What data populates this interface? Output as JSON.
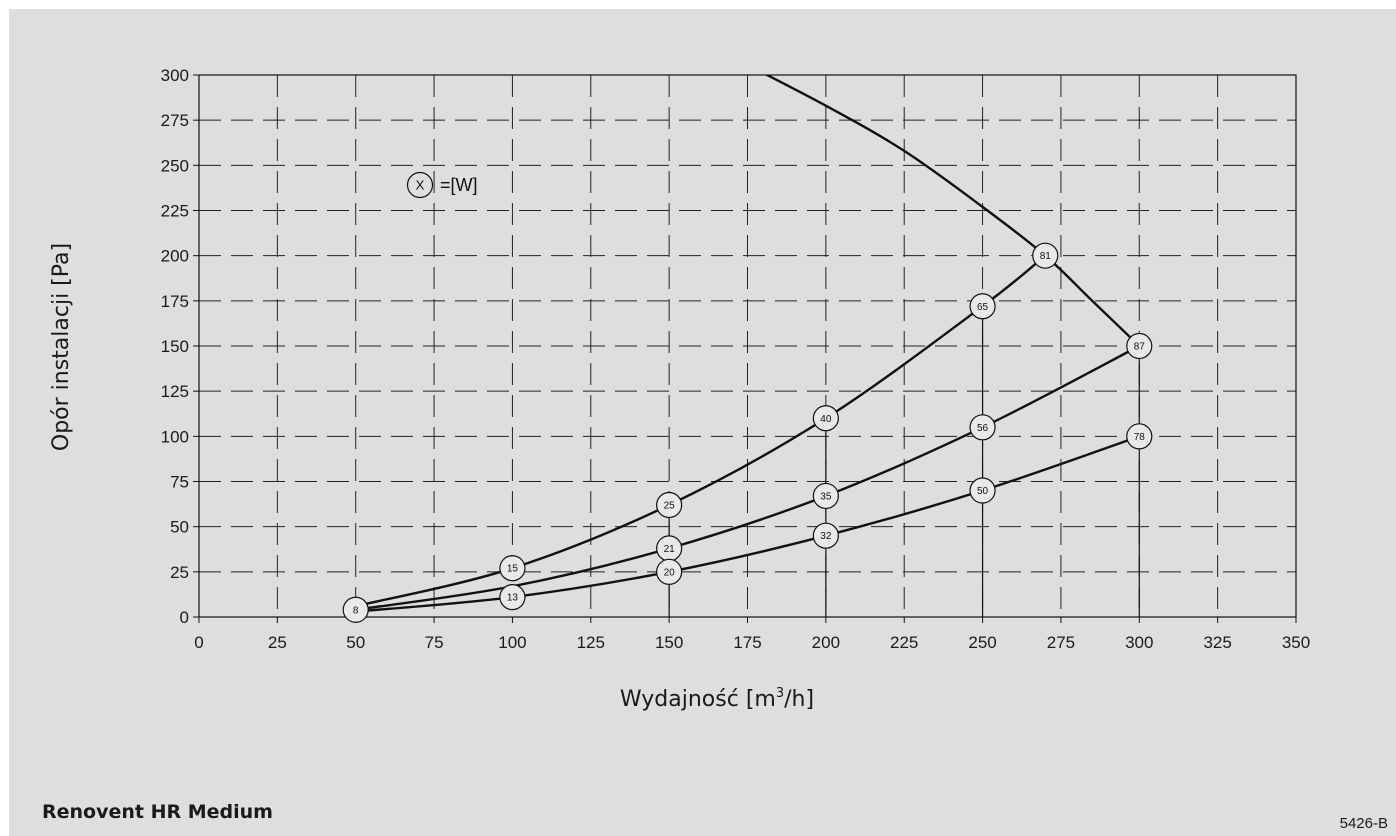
{
  "chart_data": {
    "type": "line",
    "xlabel_prefix": "Wydajność [m",
    "xlabel_sup": "3",
    "xlabel_suffix": "/h]",
    "ylabel": "Opór instalacji [Pa]",
    "xlim": [
      0,
      350
    ],
    "ylim": [
      0,
      300
    ],
    "xticks": [
      0,
      25,
      50,
      75,
      100,
      125,
      150,
      175,
      200,
      225,
      250,
      275,
      300,
      325,
      350
    ],
    "yticks": [
      0,
      25,
      50,
      75,
      100,
      125,
      150,
      175,
      200,
      225,
      250,
      275,
      300
    ],
    "grid": "dashed",
    "legend": {
      "symbol": "X",
      "text": "=[W]"
    },
    "series": [
      {
        "points": [
          [
            50,
            6
          ],
          [
            100,
            27
          ],
          [
            150,
            62
          ],
          [
            200,
            110
          ],
          [
            250,
            172
          ],
          [
            270,
            200
          ]
        ]
      },
      {
        "points": [
          [
            50,
            4
          ],
          [
            100,
            17
          ],
          [
            150,
            38
          ],
          [
            200,
            67
          ],
          [
            250,
            105
          ],
          [
            300,
            150
          ]
        ]
      },
      {
        "points": [
          [
            50,
            3
          ],
          [
            100,
            11
          ],
          [
            150,
            25
          ],
          [
            200,
            45
          ],
          [
            250,
            70
          ],
          [
            300,
            100
          ]
        ]
      },
      {
        "points": [
          [
            170,
            310
          ],
          [
            200,
            283
          ],
          [
            225,
            258
          ],
          [
            250,
            227
          ],
          [
            270,
            200
          ],
          [
            285,
            175
          ],
          [
            300,
            150
          ]
        ]
      }
    ],
    "markers": [
      {
        "x": 50,
        "y": 4,
        "label": "8"
      },
      {
        "x": 100,
        "y": 27,
        "label": "15"
      },
      {
        "x": 100,
        "y": 11,
        "label": "13"
      },
      {
        "x": 150,
        "y": 62,
        "label": "25"
      },
      {
        "x": 150,
        "y": 38,
        "label": "21"
      },
      {
        "x": 150,
        "y": 25,
        "label": "20"
      },
      {
        "x": 200,
        "y": 110,
        "label": "40"
      },
      {
        "x": 200,
        "y": 67,
        "label": "35"
      },
      {
        "x": 200,
        "y": 45,
        "label": "32"
      },
      {
        "x": 250,
        "y": 172,
        "label": "65"
      },
      {
        "x": 250,
        "y": 105,
        "label": "56"
      },
      {
        "x": 250,
        "y": 70,
        "label": "50"
      },
      {
        "x": 270,
        "y": 200,
        "label": "81"
      },
      {
        "x": 300,
        "y": 150,
        "label": "87"
      },
      {
        "x": 300,
        "y": 100,
        "label": "78"
      }
    ],
    "drop_lines": [
      {
        "x": 150,
        "y": 62
      },
      {
        "x": 200,
        "y": 110
      },
      {
        "x": 250,
        "y": 172
      },
      {
        "x": 300,
        "y": 150
      }
    ]
  },
  "product_name": "Renovent HR Medium",
  "figure_code": "5426-B"
}
